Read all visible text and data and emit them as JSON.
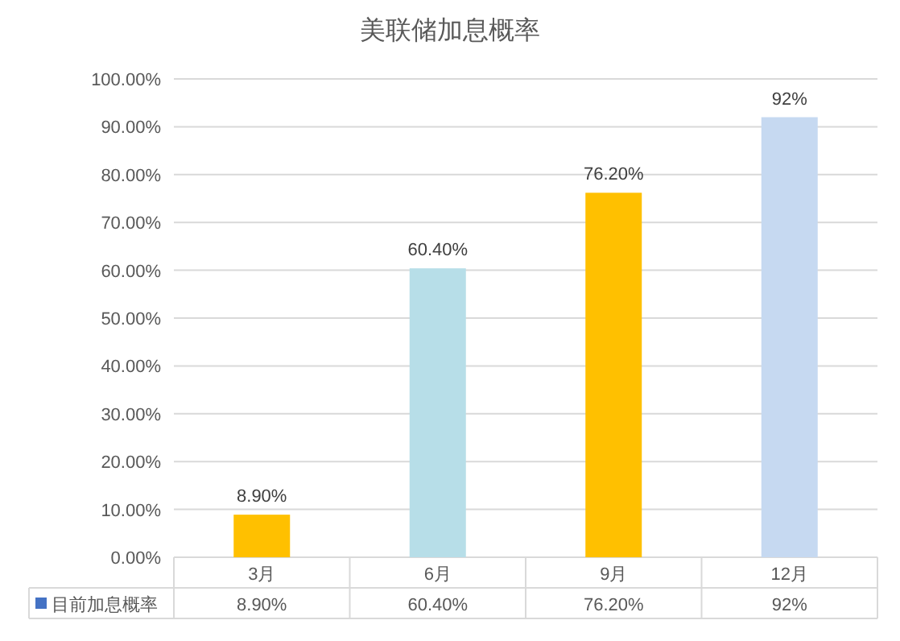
{
  "chart_data": {
    "type": "bar",
    "title": "美联储加息概率",
    "categories": [
      "3月",
      "6月",
      "9月",
      "12月"
    ],
    "series": [
      {
        "name": "目前加息概率",
        "color": "#4472c4",
        "colors": [
          "#ffc000",
          "#b7dee8",
          "#ffc000",
          "#c6d9f1"
        ],
        "values": [
          8.9,
          60.4,
          76.2,
          92
        ],
        "value_labels": [
          "8.90%",
          "60.40%",
          "76.20%",
          "92%"
        ]
      }
    ],
    "ylim": [
      0,
      100
    ],
    "yticks": [
      {
        "value": 0,
        "label": "0.00%"
      },
      {
        "value": 10,
        "label": "10.00%"
      },
      {
        "value": 20,
        "label": "20.00%"
      },
      {
        "value": 30,
        "label": "30.00%"
      },
      {
        "value": 40,
        "label": "40.00%"
      },
      {
        "value": 50,
        "label": "50.00%"
      },
      {
        "value": 60,
        "label": "60.00%"
      },
      {
        "value": 70,
        "label": "70.00%"
      },
      {
        "value": 80,
        "label": "80.00%"
      },
      {
        "value": 90,
        "label": "90.00%"
      },
      {
        "value": 100,
        "label": "100.00%"
      }
    ],
    "grid": "y",
    "legend": "bottom"
  }
}
